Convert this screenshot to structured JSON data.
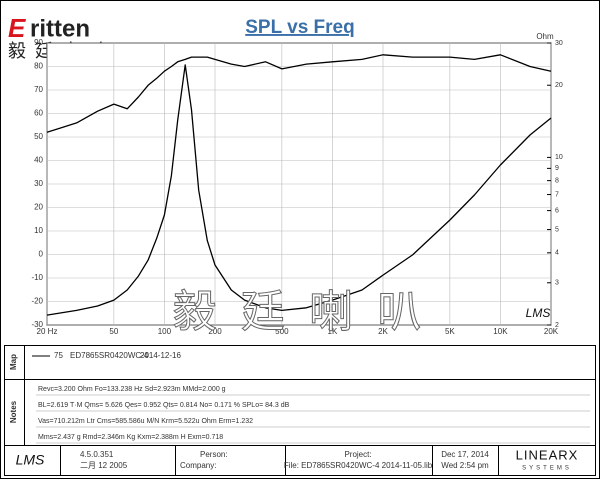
{
  "chart_data": {
    "type": "line",
    "title": "SPL vs Freq",
    "x": [
      20,
      30,
      40,
      50,
      60,
      70,
      80,
      90,
      100,
      110,
      120,
      133,
      145,
      160,
      180,
      200,
      250,
      300,
      400,
      500,
      700,
      1000,
      1500,
      2000,
      3000,
      5000,
      7000,
      10000,
      15000,
      20000
    ],
    "series": [
      {
        "color": "#000000",
        "values": [
          52,
          56,
          61,
          64,
          62,
          67,
          72,
          75,
          78,
          80,
          82,
          83,
          84,
          84,
          84,
          83,
          81,
          80,
          82,
          79,
          81,
          82,
          83,
          85,
          84,
          84,
          83,
          85,
          80,
          78
        ]
      },
      {
        "color": "#000000",
        "axis": "y2",
        "values": [
          2.2,
          2.3,
          2.4,
          2.54,
          2.8,
          3.2,
          3.73,
          4.6,
          5.75,
          8.4,
          14.3,
          24.3,
          15.8,
          7.3,
          4.5,
          3.56,
          2.8,
          2.54,
          2.36,
          2.3,
          2.36,
          2.54,
          2.8,
          3.23,
          3.92,
          5.48,
          6.97,
          9.3,
          12.4,
          14.6
        ]
      }
    ],
    "xlim": [
      20,
      20000
    ],
    "xlog": true,
    "xticks": [
      {
        "value": 20,
        "label": "20 Hz"
      },
      50,
      100,
      200,
      500,
      {
        "value": 1000,
        "label": "1K"
      },
      {
        "value": 2000,
        "label": "2K"
      },
      {
        "value": 5000,
        "label": "5K"
      },
      {
        "value": 10000,
        "label": "10K"
      },
      {
        "value": 20000,
        "label": "20K"
      }
    ],
    "ylim": [
      -30,
      90
    ],
    "yticks": [
      -30,
      -20,
      -10,
      0,
      10,
      20,
      30,
      40,
      50,
      60,
      70,
      80,
      90
    ],
    "y2label": "Ohm",
    "y2lim": [
      2,
      30
    ],
    "y2log": true,
    "y2ticks": [
      2,
      3,
      4,
      5,
      6,
      7,
      8,
      9,
      10,
      20,
      30
    ],
    "grid": true
  },
  "logo": {
    "brand": "ritten",
    "initial": "E",
    "chinese": "毅 廷 音 响"
  },
  "watermark": {
    "chinese": "毅 廷 喇 叭",
    "software": "LMS"
  },
  "map": {
    "label": "Map",
    "number": "75",
    "name": "ED7865SR0420WC-4",
    "date": "2014-12-16"
  },
  "notes": {
    "label": "Notes",
    "lines": [
      "Revc=3.200 Ohm  Fo=133.238 Hz  Sd=2.923m MMd=2.000 g",
      "BL=2.619 T·M  Qms= 5.626  Qes= 0.952  Qts= 0.814  No= 0.171 %  SPLo= 84.3 dB",
      "Vas=710.212m Ltr  Cms=585.586u M/N  Krm=5.522u Ohm  Erm=1.232",
      "Mms=2.437 g  Rmd=2.346m Kg  Kxm=2.388m H  Exm=0.718"
    ]
  },
  "footer": {
    "software": "LMS",
    "version": "4.5.0.351",
    "build_date": "二月 12 2005",
    "person": "Person:",
    "company": "Company:",
    "project": "Project:",
    "file": "File: ED7865SR0420WC-4  2014-11-05.lib",
    "date": "Dec 17, 2014",
    "time": "Wed  2:54 pm",
    "vendor": "LINEARX",
    "vendor_sub": "SYSTEMS"
  }
}
